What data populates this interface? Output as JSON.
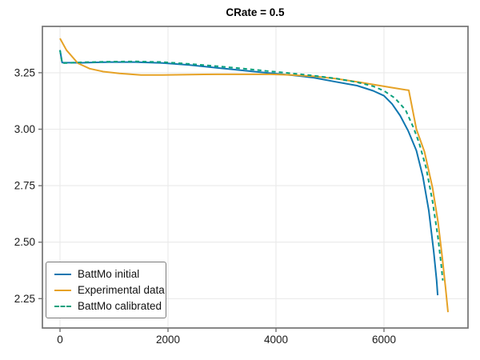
{
  "title": "CRate = 0.5",
  "axis": {
    "spine_color": "#737373",
    "grid_color": "#e9e9e9",
    "tick_color": "#555555",
    "tick_label_color": "#1a1a1a"
  },
  "chart_data": {
    "type": "line",
    "title": "CRate = 0.5",
    "xlabel": "",
    "ylabel": "",
    "xlim": [
      -326,
      7556
    ],
    "ylim": [
      2.12,
      3.455
    ],
    "grid": true,
    "legend_position": "lower-left",
    "xticks": {
      "values": [
        0,
        2000,
        4000,
        6000
      ],
      "labels": [
        "0",
        "2000",
        "4000",
        "6000"
      ]
    },
    "yticks": {
      "values": [
        2.25,
        2.5,
        2.75,
        3.0,
        3.25
      ],
      "labels": [
        "2.25",
        "2.50",
        "2.75",
        "3.00",
        "3.25"
      ]
    },
    "series": [
      {
        "name": "BattMo initial",
        "color": "#1077b0",
        "style": "solid",
        "points": [
          [
            0,
            3.35
          ],
          [
            40,
            3.295
          ],
          [
            400,
            3.294
          ],
          [
            900,
            3.297
          ],
          [
            1400,
            3.297
          ],
          [
            1900,
            3.293
          ],
          [
            2400,
            3.284
          ],
          [
            2900,
            3.272
          ],
          [
            3400,
            3.26
          ],
          [
            3900,
            3.248
          ],
          [
            4300,
            3.239
          ],
          [
            4700,
            3.228
          ],
          [
            5100,
            3.21
          ],
          [
            5500,
            3.193
          ],
          [
            5800,
            3.17
          ],
          [
            6000,
            3.148
          ],
          [
            6150,
            3.112
          ],
          [
            6300,
            3.06
          ],
          [
            6450,
            2.992
          ],
          [
            6600,
            2.905
          ],
          [
            6720,
            2.79
          ],
          [
            6830,
            2.64
          ],
          [
            6920,
            2.46
          ],
          [
            6975,
            2.33
          ],
          [
            6995,
            2.265
          ]
        ]
      },
      {
        "name": "Experimental data",
        "color": "#e6a226",
        "style": "solid",
        "points": [
          [
            0,
            3.402
          ],
          [
            120,
            3.35
          ],
          [
            330,
            3.292
          ],
          [
            550,
            3.268
          ],
          [
            800,
            3.255
          ],
          [
            1100,
            3.247
          ],
          [
            1500,
            3.24
          ],
          [
            1900,
            3.24
          ],
          [
            2400,
            3.242
          ],
          [
            2900,
            3.243
          ],
          [
            3400,
            3.243
          ],
          [
            3900,
            3.243
          ],
          [
            4300,
            3.24
          ],
          [
            4700,
            3.234
          ],
          [
            5100,
            3.224
          ],
          [
            5500,
            3.21
          ],
          [
            5800,
            3.198
          ],
          [
            6100,
            3.186
          ],
          [
            6460,
            3.172
          ],
          [
            6600,
            3.0
          ],
          [
            6750,
            2.9
          ],
          [
            6900,
            2.74
          ],
          [
            7000,
            2.59
          ],
          [
            7080,
            2.43
          ],
          [
            7140,
            2.3
          ],
          [
            7185,
            2.19
          ]
        ]
      },
      {
        "name": "BattMo calibrated",
        "color": "#0aa07d",
        "style": "dashed",
        "points": [
          [
            0,
            3.35
          ],
          [
            40,
            3.292
          ],
          [
            400,
            3.296
          ],
          [
            900,
            3.299
          ],
          [
            1400,
            3.3
          ],
          [
            1900,
            3.297
          ],
          [
            2400,
            3.289
          ],
          [
            2900,
            3.279
          ],
          [
            3400,
            3.268
          ],
          [
            3900,
            3.256
          ],
          [
            4300,
            3.247
          ],
          [
            4700,
            3.237
          ],
          [
            5100,
            3.225
          ],
          [
            5500,
            3.208
          ],
          [
            5800,
            3.19
          ],
          [
            6000,
            3.17
          ],
          [
            6200,
            3.138
          ],
          [
            6400,
            3.085
          ],
          [
            6550,
            3.005
          ],
          [
            6650,
            2.94
          ],
          [
            6780,
            2.83
          ],
          [
            6900,
            2.68
          ],
          [
            7000,
            2.52
          ],
          [
            7060,
            2.4
          ],
          [
            7090,
            2.33
          ]
        ]
      }
    ]
  }
}
